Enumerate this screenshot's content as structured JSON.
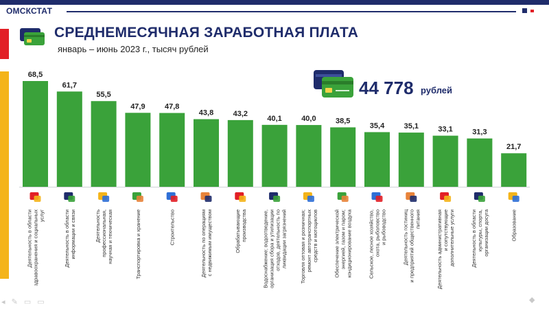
{
  "header": {
    "org": "ОМСКСТАТ"
  },
  "title": "СРЕДНЕМЕСЯЧНАЯ ЗАРАБОТНАЯ ПЛАТА",
  "subtitle": "январь – июнь 2023 г., тысяч рублей",
  "total": {
    "value": "44 778",
    "unit": "рублей"
  },
  "colors": {
    "bar": "#3aa23a",
    "accent": "#1f2c6b",
    "red": "#e21f26",
    "yellow": "#f4b41a"
  },
  "chart_data": {
    "type": "bar",
    "title": "СРЕДНЕМЕСЯЧНАЯ ЗАРАБОТНАЯ ПЛАТА",
    "subtitle": "январь – июнь 2023 г., тысяч рублей",
    "categories": [
      "Деятельность в области здравоохранения и социальных услуг",
      "Деятельность в области информации и связи",
      "Деятельность профессиональная, научная и техническая",
      "Транспортировка и хранение",
      "Строительство",
      "Деятельность по операциям с недвижимым имуществом",
      "Обрабатывающие производства",
      "Водоснабжение; водоотведение, организация сбора и утилизации отходов, деятельность по ликвидации загрязнений",
      "Торговля оптовая и розничная; ремонт автотранспортных средств и мотоциклов",
      "Обеспечение электрической энергией, газом и паром; кондиционирование воздуха",
      "Сельское, лесное хозяйство, охота, рыболовство и рыбоводство",
      "Деятельность гостиниц и предприятий общественного питания",
      "Деятельность административная и сопутствующие дополнительные услуги",
      "Деятельность в области культуры, спорта, организации досуга",
      "Образование"
    ],
    "category_lines": [
      [
        "Деятельность в области",
        "здравоохранения и социальных",
        "услуг"
      ],
      [
        "Деятельность в области",
        "информации и связи"
      ],
      [
        "Деятельность",
        "профессиональная,",
        "научная и техническая"
      ],
      [
        "Транспортировка и хранение"
      ],
      [
        "Строительство"
      ],
      [
        "Деятельность по операциям",
        "с недвижимым имуществом"
      ],
      [
        "Обрабатывающие",
        "производства"
      ],
      [
        "Водоснабжение; водоотведение,",
        "организация сбора и утилизации",
        "отходов, деятельность по",
        "ликвидации загрязнений"
      ],
      [
        "Торговля оптовая и розничная;",
        "ремонт автотранспортных",
        "средств и мотоциклов"
      ],
      [
        "Обеспечение электрической",
        "энергией, газом и паром;",
        "кондиционирование воздуха"
      ],
      [
        "Сельское, лесное хозяйство,",
        "охота, рыболовство",
        "и рыбоводство"
      ],
      [
        "Деятельность гостиниц",
        "и предприятий общественного",
        "питания"
      ],
      [
        "Деятельность административная",
        "и сопутствующие",
        "дополнительные услуги"
      ],
      [
        "Деятельность в области",
        "культуры, спорта,",
        "организации досуга"
      ],
      [
        "Образование"
      ]
    ],
    "icons": [
      "health-icon",
      "information-icon",
      "science-icon",
      "transport-icon",
      "construction-icon",
      "real-estate-icon",
      "manufacturing-icon",
      "water-supply-icon",
      "trade-icon",
      "energy-icon",
      "agriculture-icon",
      "hotel-catering-icon",
      "administrative-icon",
      "culture-sport-icon",
      "education-icon"
    ],
    "values": [
      68.5,
      61.7,
      55.5,
      47.9,
      47.8,
      43.8,
      43.2,
      40.1,
      40.0,
      38.5,
      35.4,
      35.1,
      33.1,
      31.3,
      21.7
    ],
    "value_labels": [
      "68,5",
      "61,7",
      "55,5",
      "47,9",
      "47,8",
      "43,8",
      "43,2",
      "40,1",
      "40,0",
      "38,5",
      "35,4",
      "35,1",
      "33,1",
      "31,3",
      "21,7"
    ],
    "ylim": [
      0,
      68.5
    ],
    "grid": false,
    "legend": "none"
  }
}
